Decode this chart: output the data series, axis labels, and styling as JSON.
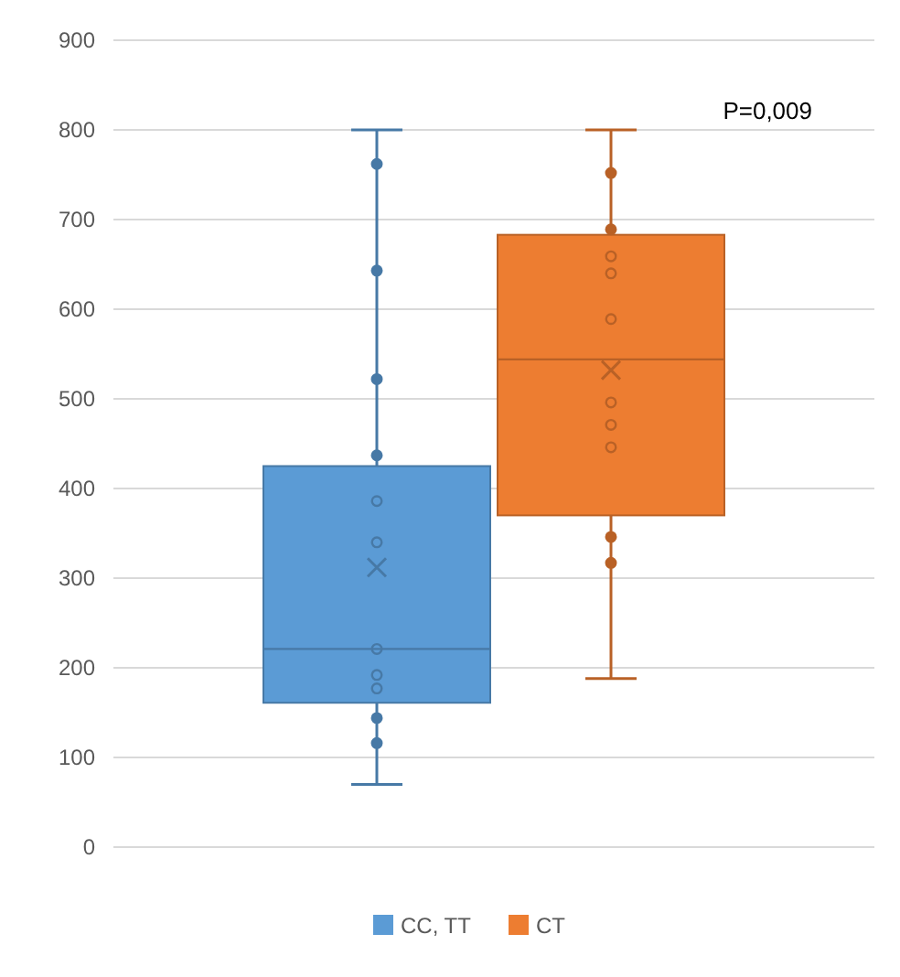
{
  "chart_data": {
    "type": "box",
    "categories": [
      null
    ],
    "series": [
      {
        "name": "CC, TT",
        "color": "#5b9bd5",
        "boxes": [
          {
            "low": 70,
            "q1": 161,
            "median": 221,
            "q3": 425,
            "high": 800,
            "mean": 312,
            "outliers": [
              762,
              643,
              522,
              437,
              386,
              340,
              221,
              192,
              177,
              144,
              116
            ]
          }
        ]
      },
      {
        "name": "CT",
        "color": "#ed7d31",
        "boxes": [
          {
            "low": 188,
            "q1": 370,
            "median": 544,
            "q3": 683,
            "high": 800,
            "mean": 532,
            "outliers": [
              752,
              689,
              659,
              640,
              589,
              496,
              471,
              446,
              346,
              317
            ]
          }
        ]
      }
    ],
    "ylim": [
      0,
      900
    ],
    "yticks": [
      0,
      100,
      200,
      300,
      400,
      500,
      600,
      700,
      800,
      900
    ],
    "grid": "y",
    "legend": "bottom",
    "marker": "circle",
    "annotations": [
      "P=0,009"
    ]
  }
}
